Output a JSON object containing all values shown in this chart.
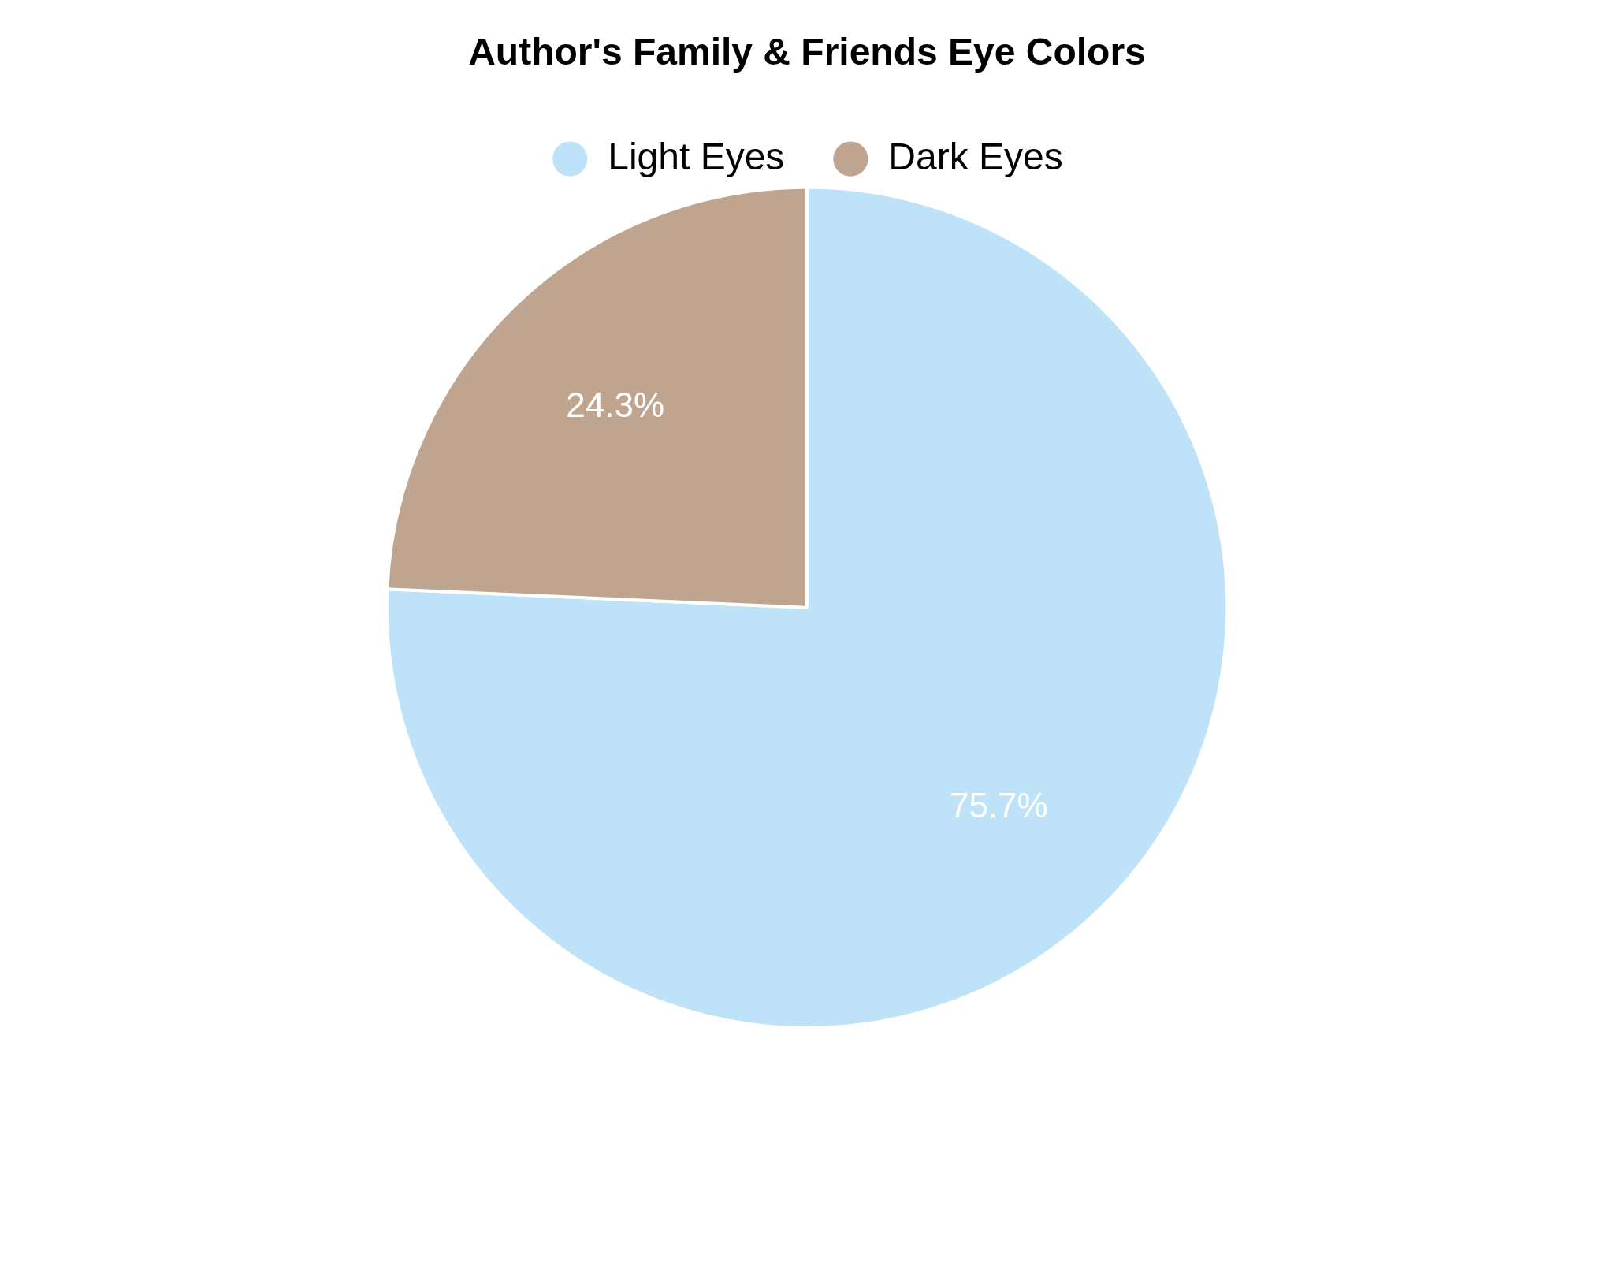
{
  "chart_data": {
    "type": "pie",
    "title": "Author's Family & Friends Eye Colors",
    "categories": [
      "Light Eyes",
      "Dark Eyes"
    ],
    "values": [
      75.7,
      24.3
    ],
    "colors": [
      "#bee3f8",
      "#bfa58f"
    ],
    "value_labels": [
      "75.7%",
      "24.3%"
    ],
    "legend": "top"
  }
}
